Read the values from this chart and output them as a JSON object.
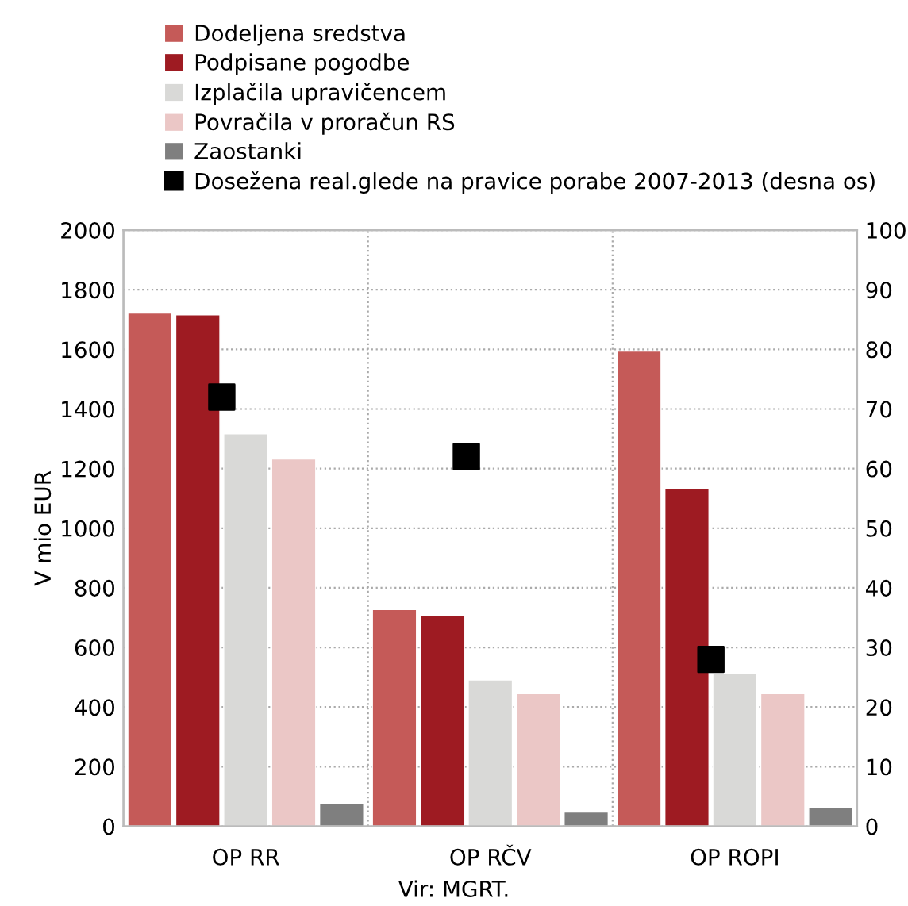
{
  "chart_data": {
    "type": "bar",
    "categories": [
      "OP RR",
      "OP RČV",
      "OP ROPI"
    ],
    "series": [
      {
        "name": "Dodeljena sredstva",
        "color": "#c55a58",
        "values": [
          1722,
          727,
          1594
        ]
      },
      {
        "name": "Podpisane pogodbe",
        "color": "#9e1b22",
        "values": [
          1716,
          706,
          1133
        ]
      },
      {
        "name": "Izplačila upravičencem",
        "color": "#d9d9d7",
        "values": [
          1317,
          491,
          514
        ]
      },
      {
        "name": "Povračila v proračun RS",
        "color": "#ebc7c6",
        "values": [
          1232,
          445,
          445
        ]
      },
      {
        "name": "Zaostanki",
        "color": "#7f7f7f",
        "values": [
          78,
          48,
          62
        ]
      },
      {
        "name": "Dosežena real.glede na pravice porabe 2007-2013 (desna os)",
        "color": "#000000",
        "type": "scatter",
        "axis": "y2",
        "marker": "square",
        "values": [
          72,
          62,
          28
        ]
      }
    ],
    "ylabel": "V mio EUR",
    "ylim": [
      0,
      2000
    ],
    "yticks": [
      0,
      200,
      400,
      600,
      800,
      1000,
      1200,
      1400,
      1600,
      1800,
      2000
    ],
    "y2lim": [
      0,
      100
    ],
    "y2ticks": [
      0,
      10,
      20,
      30,
      40,
      50,
      60,
      70,
      80,
      90,
      100
    ],
    "grid": true,
    "legend": "top",
    "annotations": [
      "Vir: MGRT."
    ]
  }
}
